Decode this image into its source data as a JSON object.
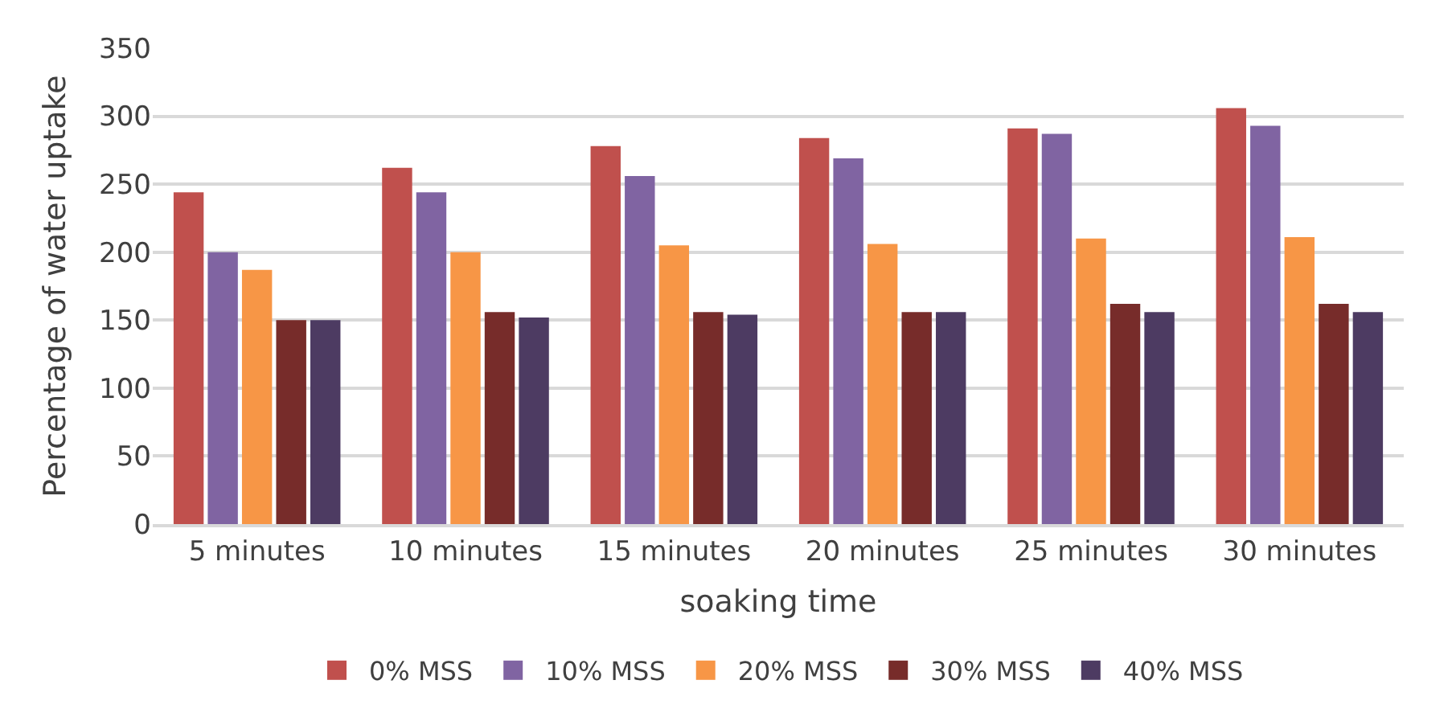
{
  "chart_data": {
    "type": "bar",
    "xlabel": "soaking time",
    "ylabel": "Percentage of water uptake",
    "categories": [
      "5 minutes",
      "10 minutes",
      "15 minutes",
      "20 minutes",
      "25 minutes",
      "30 minutes"
    ],
    "series": [
      {
        "name": "0% MSS",
        "color": "#c0504d",
        "values": [
          244,
          262,
          278,
          284,
          291,
          306
        ]
      },
      {
        "name": "10% MSS",
        "color": "#8064a2",
        "values": [
          200,
          244,
          256,
          269,
          287,
          293
        ]
      },
      {
        "name": "20% MSS",
        "color": "#f79646",
        "values": [
          187,
          200,
          205,
          206,
          210,
          211
        ]
      },
      {
        "name": "30% MSS",
        "color": "#772c2a",
        "values": [
          150,
          156,
          156,
          156,
          162,
          162
        ]
      },
      {
        "name": "40% MSS",
        "color": "#4d3b62",
        "values": [
          150,
          152,
          154,
          156,
          156,
          156
        ]
      }
    ],
    "ylim": [
      0,
      350
    ],
    "yticks": [
      0,
      50,
      100,
      150,
      200,
      250,
      300,
      350
    ],
    "grid": "y",
    "legend": "bottom"
  }
}
